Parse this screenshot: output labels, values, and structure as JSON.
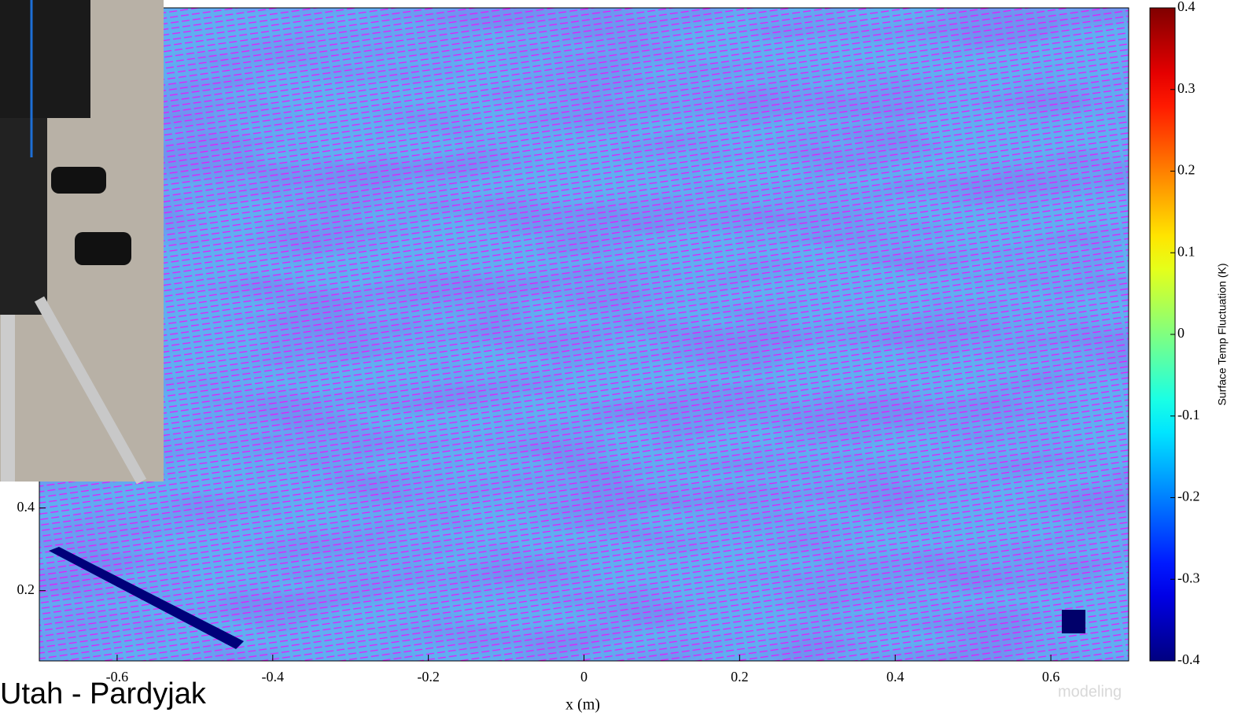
{
  "chart_data": {
    "type": "heatmap",
    "xlabel": "x (m)",
    "xlim": [
      -0.7,
      0.7
    ],
    "xticks": [
      -0.6,
      -0.4,
      -0.2,
      0,
      0.2,
      0.4,
      0.6
    ],
    "ylim": [
      0.03,
      1.61
    ],
    "yticks": [
      0.2,
      0.4
    ],
    "vector_color": "#ff00ff",
    "colorbar": {
      "label": "Surface Temp Fluctuation (K)",
      "colormap": "jet",
      "clim": [
        -0.4,
        0.4
      ],
      "ticks": [
        -0.4,
        -0.3,
        -0.2,
        -0.1,
        0,
        0.1,
        0.2,
        0.3,
        0.4
      ]
    }
  },
  "footer": {
    "credit": "Utah - Pardyjak",
    "tag": "modeling"
  }
}
